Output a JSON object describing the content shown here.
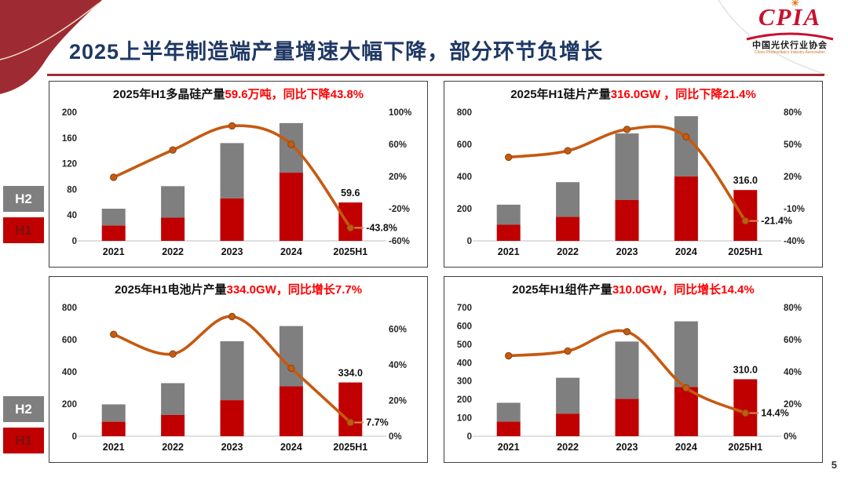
{
  "slide": {
    "title": "2025上半年制造端产量增速大幅下降，部分环节负增长",
    "page_number": "5",
    "title_color": "#1F3864",
    "accent_color": "#9E2B33"
  },
  "logo": {
    "acronym": "CPIA",
    "cn": "中国光伏行业协会",
    "en": "China Photovoltaics Industry Association",
    "brand_color": "#C8102E"
  },
  "legend": {
    "items": [
      {
        "label": "H2",
        "color": "#7F7F7F",
        "text_color": "#FFFFFF"
      },
      {
        "label": "H1",
        "color": "#C00000",
        "text_color": "#7A1010"
      }
    ]
  },
  "chart_data": [
    {
      "type": "bar+line",
      "title_black": "2025年H1多晶硅产量",
      "title_red": "59.6万吨，同比下降43.8%",
      "categories": [
        "2021",
        "2022",
        "2023",
        "2024",
        "2025H1"
      ],
      "series": [
        {
          "name": "H1",
          "color": "#C00000",
          "values": [
            24,
            36,
            66,
            106,
            59.6
          ]
        },
        {
          "name": "H2",
          "color": "#7F7F7F",
          "values": [
            26,
            49,
            86,
            77,
            0
          ]
        }
      ],
      "line": {
        "color": "#C55A11",
        "values": [
          19,
          53,
          83,
          60,
          -43.8
        ]
      },
      "left_axis": {
        "ticks": [
          "200",
          "160",
          "120",
          "80",
          "40",
          "0"
        ],
        "max": 200
      },
      "right_axis": {
        "ticks": [
          "100%",
          "60%",
          "20%",
          "-20%",
          "-60%"
        ],
        "min": -60,
        "max": 100
      },
      "last_bar_label": "59.6",
      "last_point_label": "-43.8%"
    },
    {
      "type": "bar+line",
      "title_black": "2025年H1硅片产量",
      "title_red": "316.0GW ，同比下降21.4%",
      "categories": [
        "2021",
        "2022",
        "2023",
        "2024",
        "2025H1"
      ],
      "series": [
        {
          "name": "H1",
          "color": "#C00000",
          "values": [
            100,
            150,
            255,
            400,
            316
          ]
        },
        {
          "name": "H2",
          "color": "#7F7F7F",
          "values": [
            125,
            215,
            413,
            375,
            0
          ]
        }
      ],
      "line": {
        "color": "#C55A11",
        "values": [
          38,
          44,
          64,
          57,
          -21.4
        ]
      },
      "left_axis": {
        "ticks": [
          "800",
          "600",
          "400",
          "200",
          "0"
        ],
        "max": 800
      },
      "right_axis": {
        "ticks": [
          "80%",
          "50%",
          "20%",
          "-10%",
          "-40%"
        ],
        "min": -40,
        "max": 80
      },
      "last_bar_label": "316.0",
      "last_point_label": "-21.4%"
    },
    {
      "type": "bar+line",
      "title_black": "2025年H1电池片产量",
      "title_red": "334.0GW，同比增长7.7%",
      "categories": [
        "2021",
        "2022",
        "2023",
        "2024",
        "2025H1"
      ],
      "series": [
        {
          "name": "H1",
          "color": "#C00000",
          "values": [
            90,
            133,
            224,
            310,
            334
          ]
        },
        {
          "name": "H2",
          "color": "#7F7F7F",
          "values": [
            108,
            197,
            366,
            375,
            0
          ]
        }
      ],
      "line": {
        "color": "#C55A11",
        "values": [
          57,
          46,
          67,
          38,
          7.7
        ]
      },
      "left_axis": {
        "ticks": [
          "800",
          "600",
          "400",
          "200",
          "0"
        ],
        "max": 800
      },
      "right_axis": {
        "ticks": [
          "60%",
          "40%",
          "20%",
          "0%"
        ],
        "min": 0,
        "max": 72
      },
      "last_bar_label": "334.0",
      "last_point_label": "7.7%"
    },
    {
      "type": "bar+line",
      "title_black": "2025年H1组件产量",
      "title_red": "310.0GW，同比增长14.4%",
      "categories": [
        "2021",
        "2022",
        "2023",
        "2024",
        "2025H1"
      ],
      "series": [
        {
          "name": "H1",
          "color": "#C00000",
          "values": [
            80,
            123,
            203,
            268,
            310
          ]
        },
        {
          "name": "H2",
          "color": "#7F7F7F",
          "values": [
            102,
            195,
            312,
            357,
            0
          ]
        }
      ],
      "line": {
        "color": "#C55A11",
        "values": [
          50,
          53,
          65,
          30,
          14.4
        ]
      },
      "left_axis": {
        "ticks": [
          "700",
          "600",
          "500",
          "400",
          "300",
          "200",
          "100",
          "0"
        ],
        "max": 700
      },
      "right_axis": {
        "ticks": [
          "80%",
          "60%",
          "40%",
          "20%",
          "0%"
        ],
        "min": 0,
        "max": 80
      },
      "last_bar_label": "310.0",
      "last_point_label": "14.4%"
    }
  ]
}
